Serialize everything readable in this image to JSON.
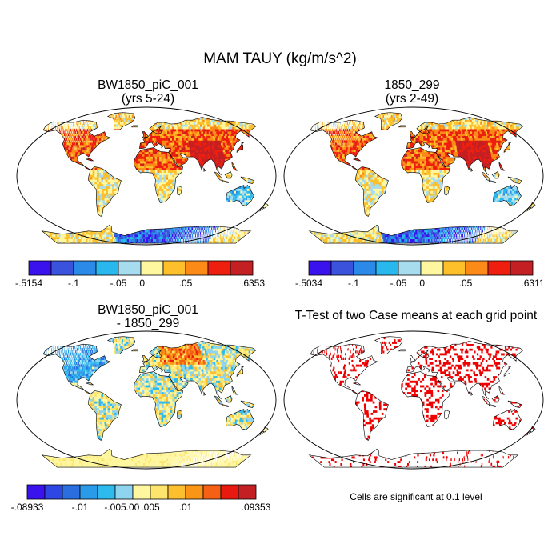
{
  "figure": {
    "title": "MAM TAUY (kg/m/s^2)"
  },
  "panels": [
    {
      "title_line1": "BW1850_piC_001",
      "title_line2": "(yrs 5-24)",
      "kind": "field",
      "colorbar": {
        "colors": [
          "#3a12ee",
          "#3b52dc",
          "#2b8ae8",
          "#28b8ee",
          "#a6dcee",
          "#fff7a0",
          "#fdbf2a",
          "#fb8a16",
          "#ee1f0e",
          "#c42023"
        ],
        "labels": [
          "-.5154",
          "-.1",
          "-.05",
          ".0",
          ".05",
          ".6353"
        ],
        "label_at_boundary": [
          0,
          2,
          4,
          5,
          7,
          10
        ]
      }
    },
    {
      "title_line1": "1850_299",
      "title_line2": "(yrs 2-49)",
      "kind": "field",
      "colorbar": {
        "colors": [
          "#3a12ee",
          "#3b52dc",
          "#2b8ae8",
          "#28b8ee",
          "#a6dcee",
          "#fff7a0",
          "#fdbf2a",
          "#fb8a16",
          "#ee1f0e",
          "#c42023"
        ],
        "labels": [
          "-.5034",
          "-.1",
          "-.05",
          ".0",
          ".05",
          ".6311"
        ],
        "label_at_boundary": [
          0,
          2,
          4,
          5,
          7,
          10
        ]
      }
    },
    {
      "title_line1": "BW1850_piC_001",
      "title_line2": "- 1850_299",
      "kind": "difference",
      "colorbar": {
        "colors": [
          "#3a12ee",
          "#2d46e4",
          "#2a6edf",
          "#2a9be9",
          "#2fbaee",
          "#8fd4ef",
          "#fff7a0",
          "#fde46c",
          "#fcbf2e",
          "#fb9518",
          "#f56014",
          "#e8190e",
          "#c42023"
        ],
        "labels": [
          "-.08933",
          "-.01",
          "-.005",
          ".00",
          ".005",
          ".01",
          ".09353"
        ],
        "label_at_boundary": [
          0,
          3,
          5,
          6,
          7,
          9,
          13
        ]
      }
    },
    {
      "title_line1": "T-Test of two Case means at each grid point",
      "title_line2": "",
      "kind": "ttest",
      "note": "Cells are significant at 0.1 level"
    }
  ]
}
